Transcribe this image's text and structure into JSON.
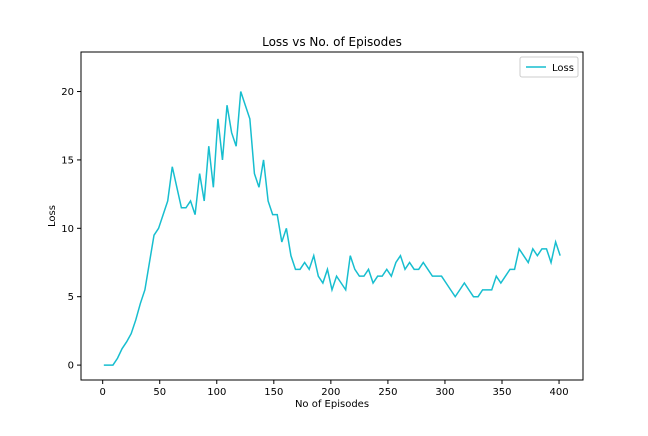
{
  "chart_data": {
    "type": "line",
    "title": "Loss vs No. of Episodes",
    "x_label": "No of Episodes",
    "y_label": "Loss",
    "x": [
      1,
      5,
      9,
      13,
      17,
      21,
      25,
      29,
      33,
      37,
      41,
      45,
      49,
      53,
      57,
      61,
      65,
      69,
      73,
      77,
      81,
      85,
      89,
      93,
      97,
      101,
      105,
      109,
      113,
      117,
      121,
      125,
      129,
      133,
      137,
      141,
      145,
      149,
      153,
      157,
      161,
      165,
      169,
      173,
      177,
      181,
      185,
      189,
      193,
      197,
      201,
      205,
      209,
      213,
      217,
      221,
      225,
      229,
      233,
      237,
      241,
      245,
      249,
      253,
      257,
      261,
      265,
      269,
      273,
      277,
      281,
      285,
      289,
      293,
      297,
      301,
      305,
      309,
      313,
      317,
      321,
      325,
      329,
      333,
      337,
      341,
      345,
      349,
      353,
      357,
      361,
      365,
      369,
      373,
      377,
      381,
      385,
      389,
      393,
      397,
      401
    ],
    "series": [
      {
        "name": "Loss",
        "color": "#17becf",
        "values": [
          0,
          0,
          0,
          0.5,
          1.2,
          1.7,
          2.3,
          3.3,
          4.5,
          5.5,
          7.5,
          9.5,
          10,
          11,
          12,
          14.5,
          13,
          11.5,
          11.5,
          12,
          11,
          14,
          12,
          16,
          13,
          18,
          15,
          19,
          17,
          16,
          20,
          19,
          18,
          14,
          13,
          15,
          12,
          11,
          11,
          9,
          10,
          8,
          7,
          7,
          7.5,
          7,
          8,
          6.5,
          6,
          7,
          5.5,
          6.5,
          6,
          5.5,
          8,
          7,
          6.5,
          6.5,
          7,
          6,
          6.5,
          6.5,
          7,
          6.5,
          7.5,
          8,
          7,
          7.5,
          7,
          7,
          7.5,
          7,
          6.5,
          6.5,
          6.5,
          6,
          5.5,
          5,
          5.5,
          6,
          5.5,
          5,
          5,
          5.5,
          5.5,
          5.5,
          6.5,
          6,
          6.5,
          7,
          7,
          8.5,
          8,
          7.5,
          8.5,
          8,
          8.5,
          8.5,
          7.5,
          9,
          8
        ]
      }
    ],
    "xlim": [
      -19,
      421
    ],
    "ylim": [
      -1.09,
      22.89
    ],
    "xticks": [
      0,
      50,
      100,
      150,
      200,
      250,
      300,
      350,
      400
    ],
    "yticks": [
      0,
      5,
      10,
      15,
      20
    ],
    "legend": "upper right"
  }
}
